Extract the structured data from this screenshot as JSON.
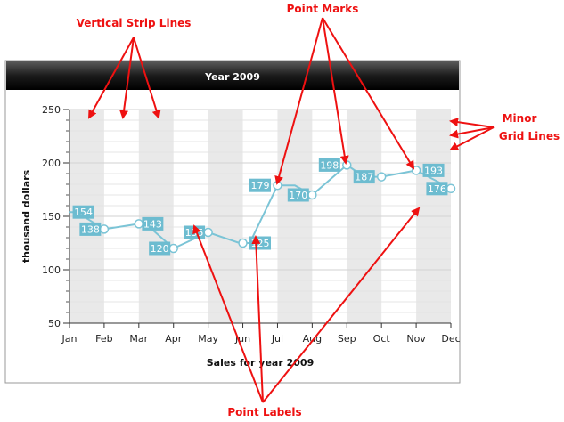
{
  "chart_data": {
    "type": "line",
    "title": "Year 2009",
    "xlabel": "Sales for year 2009",
    "ylabel": "thousand dollars",
    "categories": [
      "Jan",
      "Feb",
      "Mar",
      "Apr",
      "May",
      "Jun",
      "Jul",
      "Aug",
      "Sep",
      "Oct",
      "Nov",
      "Dec"
    ],
    "series": [
      {
        "x": [
          0,
          0.2,
          1,
          2,
          2.2,
          3,
          4,
          4.9,
          5.2,
          6,
          6.5,
          7,
          8,
          8.5,
          9,
          10,
          11
        ],
        "values": [
          154,
          154,
          138,
          143,
          143,
          120,
          135,
          125,
          125,
          179,
          179,
          170,
          198,
          187,
          187,
          193,
          176
        ]
      }
    ],
    "point_labels": [
      {
        "text": "154",
        "x": 0.4,
        "y": 154
      },
      {
        "text": "138",
        "x": 0.6,
        "y": 138
      },
      {
        "text": "143",
        "x": 2.4,
        "y": 143
      },
      {
        "text": "120",
        "x": 2.6,
        "y": 120
      },
      {
        "text": "135",
        "x": 3.6,
        "y": 135
      },
      {
        "text": "125",
        "x": 5.5,
        "y": 125
      },
      {
        "text": "179",
        "x": 5.5,
        "y": 179
      },
      {
        "text": "170",
        "x": 6.6,
        "y": 170
      },
      {
        "text": "198",
        "x": 7.5,
        "y": 198
      },
      {
        "text": "187",
        "x": 8.5,
        "y": 187
      },
      {
        "text": "193",
        "x": 10.5,
        "y": 193
      },
      {
        "text": "176",
        "x": 10.6,
        "y": 176
      }
    ],
    "markers": [
      {
        "x": 1,
        "y": 138
      },
      {
        "x": 2,
        "y": 143
      },
      {
        "x": 3,
        "y": 120
      },
      {
        "x": 4,
        "y": 135
      },
      {
        "x": 5,
        "y": 125
      },
      {
        "x": 6,
        "y": 179
      },
      {
        "x": 7,
        "y": 170
      },
      {
        "x": 8,
        "y": 198
      },
      {
        "x": 9,
        "y": 187
      },
      {
        "x": 10,
        "y": 193
      },
      {
        "x": 11,
        "y": 176
      }
    ],
    "strip_months": [
      "Jan",
      "Mar",
      "May",
      "Jul",
      "Sep",
      "Nov"
    ],
    "ylim": [
      50,
      250
    ],
    "xlim": [
      0,
      11
    ],
    "y_ticks": [
      50,
      100,
      150,
      200,
      250
    ],
    "minor_grid_step": 10,
    "grid": true,
    "colors": {
      "line": "#7bc4d6",
      "label_bg": "#6dbcd0",
      "strip": "#e9e9e9",
      "title_bar": "#1e1e1e",
      "annotation": "#ee1111"
    }
  },
  "annotations": [
    {
      "text": "Vertical Strip Lines"
    },
    {
      "text": "Point Marks"
    },
    {
      "text": "Minor"
    },
    {
      "text": "Grid Lines"
    },
    {
      "text": "Point Labels"
    }
  ]
}
